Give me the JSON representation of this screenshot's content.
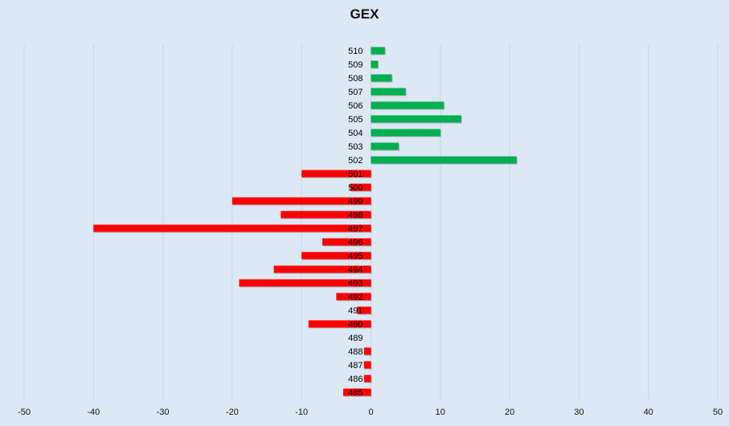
{
  "chart_data": {
    "type": "bar",
    "orientation": "horizontal",
    "title": "GEX",
    "xlabel": "",
    "ylabel": "",
    "xlim": [
      -50,
      50
    ],
    "xticks": [
      -50,
      -40,
      -30,
      -20,
      -10,
      0,
      10,
      20,
      30,
      40,
      50
    ],
    "grid": true,
    "legend": "none",
    "categories": [
      "510",
      "509",
      "508",
      "507",
      "506",
      "505",
      "504",
      "503",
      "502",
      "501",
      "500",
      "499",
      "498",
      "497",
      "496",
      "495",
      "494",
      "493",
      "492",
      "491",
      "490",
      "489",
      "488",
      "487",
      "486",
      "485"
    ],
    "values": [
      2,
      1,
      3,
      5,
      10.5,
      13,
      10,
      4,
      21,
      -10,
      -3,
      -20,
      -13,
      -40,
      -7,
      -10,
      -14,
      -19,
      -5,
      -2,
      -9,
      0,
      -1,
      -1,
      -1,
      -4
    ],
    "colors": {
      "positive": "#00b050",
      "negative": "#ff0000",
      "grid": "#c9d6e6",
      "background": "#dde8f5"
    }
  }
}
